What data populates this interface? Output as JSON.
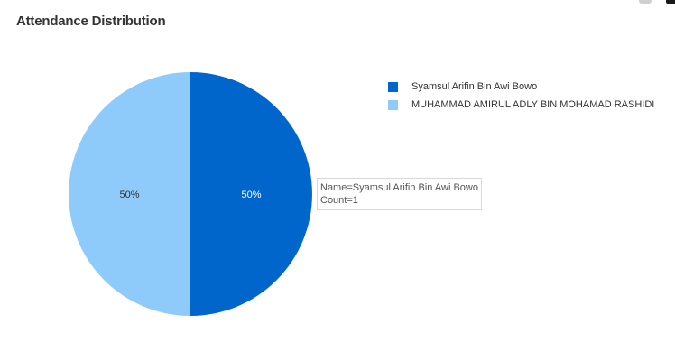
{
  "header": {
    "title": "Attendance Distribution"
  },
  "toolbar": {
    "icons": [
      "camera-icon",
      "bar-chart-icon"
    ]
  },
  "chart_data": {
    "type": "pie",
    "title": "Attendance Distribution",
    "legend_placement": "right",
    "slices": [
      {
        "label": "Syamsul Arifin Bin Awi Bowo",
        "value": 1,
        "percent_label": "50%",
        "color": "#0066cc"
      },
      {
        "label": "MUHAMMAD AMIRUL ADLY BIN MOHAMAD RASHIDI",
        "value": 1,
        "percent_label": "50%",
        "color": "#8ecbfa"
      }
    ]
  },
  "tooltip": {
    "line1": "Name=Syamsul Arifin Bin Awi Bowo",
    "line2": "Count=1"
  }
}
